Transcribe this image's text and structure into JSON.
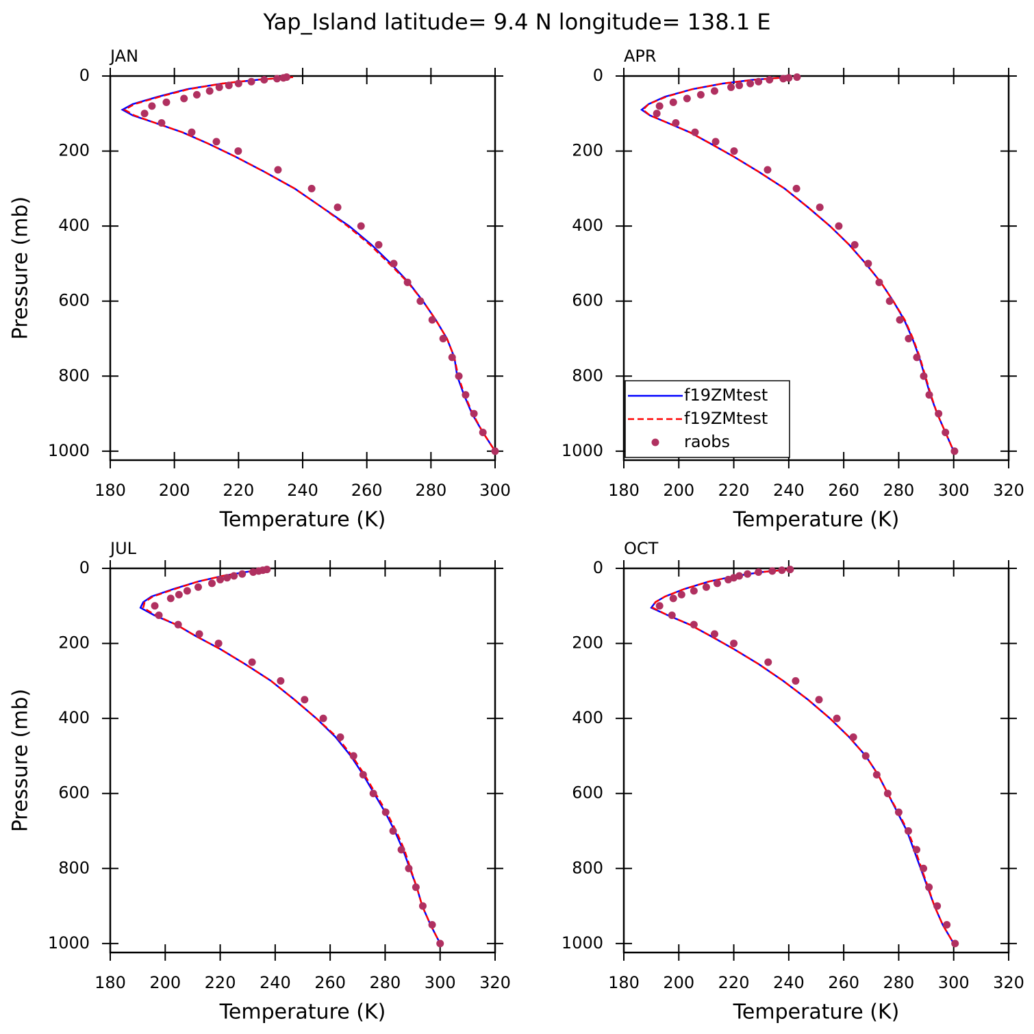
{
  "title": "Yap_Island  latitude= 9.4 N longitude= 138.1 E",
  "chart_data": [
    {
      "type": "line",
      "title": "JAN",
      "xlabel": "Temperature (K)",
      "ylabel": "Pressure (mb)",
      "xlim": [
        180,
        300
      ],
      "xticks": [
        180,
        200,
        220,
        240,
        260,
        280,
        300
      ],
      "ylim": [
        1024,
        0
      ],
      "yticks": [
        0,
        200,
        400,
        600,
        800,
        1000
      ],
      "legend": false,
      "series": [
        {
          "name": "f19ZMtest",
          "color": "#0000ff",
          "style": "solid",
          "x": [
            237,
            226,
            215,
            204,
            195,
            187,
            183.8,
            187,
            194,
            202.5,
            210.5,
            219,
            228,
            237.5,
            246,
            254.5,
            261.5,
            267.5,
            273,
            277.5,
            281.5,
            285,
            287.3,
            288.2,
            290.3,
            292.8,
            296.2,
            300
          ],
          "y": [
            3,
            10,
            20,
            35,
            55,
            75,
            90,
            105,
            125,
            150,
            180,
            215,
            255,
            300,
            350,
            400,
            450,
            500,
            550,
            600,
            650,
            700,
            750,
            800,
            850,
            900,
            950,
            1000
          ]
        },
        {
          "name": "f19ZMtest",
          "color": "#ff0000",
          "style": "dashed",
          "x": [
            237,
            225.5,
            215,
            204.5,
            195.5,
            187.5,
            184.5,
            187.5,
            194,
            202.5,
            210.5,
            219,
            228,
            237.5,
            246,
            254,
            261,
            267,
            272.8,
            277.5,
            281.5,
            285,
            287.3,
            288.5,
            290.5,
            293,
            296.2,
            300
          ],
          "y": [
            3,
            10,
            20,
            35,
            55,
            75,
            90,
            105,
            125,
            150,
            180,
            215,
            255,
            300,
            350,
            400,
            450,
            500,
            550,
            600,
            650,
            700,
            750,
            800,
            850,
            900,
            950,
            1000
          ]
        },
        {
          "name": "raobs",
          "color": "#b03060",
          "style": "markers",
          "x": [
            235,
            234,
            232,
            228,
            224,
            220,
            217,
            214,
            211,
            207,
            203,
            197.5,
            193,
            190.7,
            196,
            205.4,
            213.1,
            219.9,
            232.3,
            242.8,
            250.9,
            258.2,
            263.7,
            268.4,
            272.7,
            276.7,
            280.4,
            283.8,
            286.6,
            288.7,
            290.8,
            293.4,
            296.2,
            300
          ],
          "y": [
            3,
            5,
            7,
            10,
            15,
            20,
            25,
            30,
            40,
            50,
            60,
            70,
            80,
            100,
            125,
            150,
            175,
            200,
            250,
            300,
            350,
            400,
            450,
            500,
            550,
            600,
            650,
            700,
            750,
            800,
            850,
            900,
            950,
            1000
          ]
        }
      ]
    },
    {
      "type": "line",
      "title": "APR",
      "xlabel": "Temperature (K)",
      "ylabel": "",
      "xlim": [
        180,
        320
      ],
      "xticks": [
        180,
        200,
        220,
        240,
        260,
        280,
        300,
        320
      ],
      "ylim": [
        1024,
        0
      ],
      "yticks": [
        0,
        200,
        400,
        600,
        800,
        1000
      ],
      "legend": "lower left",
      "series": [
        {
          "name": "f19ZMtest",
          "color": "#0000ff",
          "style": "solid",
          "x": [
            240,
            227,
            216,
            205,
            195,
            189,
            186.5,
            189.5,
            196,
            204,
            211.5,
            220,
            229,
            238.5,
            247,
            255,
            262,
            268,
            273.5,
            278,
            282,
            285,
            287.5,
            289.5,
            291.5,
            294,
            297,
            300
          ],
          "y": [
            3,
            10,
            20,
            35,
            55,
            75,
            90,
            105,
            125,
            150,
            180,
            215,
            255,
            300,
            350,
            400,
            450,
            500,
            550,
            600,
            650,
            700,
            750,
            800,
            850,
            900,
            950,
            1000
          ]
        },
        {
          "name": "f19ZMtest",
          "color": "#ff0000",
          "style": "dashed",
          "x": [
            240,
            227.5,
            216,
            205,
            195.5,
            189,
            187,
            189.5,
            196,
            204,
            211.5,
            220,
            229,
            238.5,
            247,
            255,
            262,
            268,
            273.5,
            278,
            282.2,
            285.2,
            287.7,
            289.7,
            291.7,
            294,
            297,
            300
          ],
          "y": [
            3,
            10,
            20,
            35,
            55,
            75,
            90,
            105,
            125,
            150,
            180,
            215,
            255,
            300,
            350,
            400,
            450,
            500,
            550,
            600,
            650,
            700,
            750,
            800,
            850,
            900,
            950,
            1000
          ]
        },
        {
          "name": "raobs",
          "color": "#b03060",
          "style": "markers",
          "x": [
            243,
            240,
            238,
            233,
            229,
            226,
            222,
            219,
            213,
            208,
            203,
            198,
            193,
            192,
            198.9,
            205.9,
            213.4,
            220.1,
            232.3,
            242.8,
            251.3,
            258.2,
            264,
            268.9,
            272.9,
            276.7,
            280.4,
            283.6,
            286.6,
            289.1,
            291.1,
            294.5,
            297,
            300.3
          ],
          "y": [
            3,
            5,
            7,
            10,
            15,
            20,
            25,
            30,
            40,
            50,
            60,
            70,
            80,
            100,
            125,
            150,
            175,
            200,
            250,
            300,
            350,
            400,
            450,
            500,
            550,
            600,
            650,
            700,
            750,
            800,
            850,
            900,
            950,
            1000
          ]
        }
      ]
    },
    {
      "type": "line",
      "title": "JUL",
      "xlabel": "Temperature (K)",
      "ylabel": "Pressure (mb)",
      "xlim": [
        180,
        320
      ],
      "xticks": [
        180,
        200,
        220,
        240,
        260,
        280,
        300,
        320
      ],
      "ylim": [
        1024,
        0
      ],
      "yticks": [
        0,
        200,
        400,
        600,
        800,
        1000
      ],
      "legend": false,
      "series": [
        {
          "name": "f19ZMtest",
          "color": "#0000ff",
          "style": "solid",
          "x": [
            236,
            229,
            221,
            212,
            203,
            195,
            192,
            191,
            196,
            204,
            211,
            220,
            229,
            238.5,
            247,
            255,
            262,
            267.5,
            272,
            276,
            280,
            283.5,
            286.5,
            289,
            291.5,
            293.5,
            296.5,
            300
          ],
          "y": [
            3,
            10,
            20,
            35,
            55,
            75,
            90,
            105,
            125,
            150,
            180,
            215,
            255,
            300,
            350,
            400,
            450,
            500,
            550,
            600,
            650,
            700,
            750,
            800,
            850,
            900,
            950,
            1000
          ]
        },
        {
          "name": "f19ZMtest",
          "color": "#ff0000",
          "style": "dashed",
          "x": [
            236,
            229,
            221,
            212,
            203.5,
            195.5,
            192.5,
            192,
            196.5,
            204,
            211,
            220,
            229,
            238.5,
            247,
            255,
            262.5,
            268,
            272.5,
            276.5,
            280.5,
            284,
            287,
            289.2,
            291.5,
            293.5,
            296.5,
            300
          ],
          "y": [
            3,
            10,
            20,
            35,
            55,
            75,
            90,
            105,
            125,
            150,
            180,
            215,
            255,
            300,
            350,
            400,
            450,
            500,
            550,
            600,
            650,
            700,
            750,
            800,
            850,
            900,
            950,
            1000
          ]
        },
        {
          "name": "raobs",
          "color": "#b03060",
          "style": "markers",
          "x": [
            237,
            235.5,
            234,
            232,
            228,
            225,
            222.5,
            220,
            217,
            212,
            208,
            205,
            202,
            196.2,
            197.7,
            204.7,
            212.4,
            219.4,
            231.6,
            242,
            250.7,
            257.5,
            263.7,
            268.5,
            272,
            275.7,
            280.2,
            282.9,
            285.9,
            288.6,
            291.2,
            293.7,
            297.1,
            300
          ],
          "y": [
            3,
            5,
            7,
            10,
            15,
            20,
            25,
            30,
            40,
            50,
            60,
            70,
            80,
            100,
            125,
            150,
            175,
            200,
            250,
            300,
            350,
            400,
            450,
            500,
            550,
            600,
            650,
            700,
            750,
            800,
            850,
            900,
            950,
            1000
          ]
        }
      ]
    },
    {
      "type": "line",
      "title": "OCT",
      "xlabel": "Temperature (K)",
      "ylabel": "",
      "xlim": [
        180,
        320
      ],
      "xticks": [
        180,
        200,
        220,
        240,
        260,
        280,
        300,
        320
      ],
      "ylim": [
        1024,
        0
      ],
      "yticks": [
        0,
        200,
        400,
        600,
        800,
        1000
      ],
      "legend": false,
      "series": [
        {
          "name": "f19ZMtest",
          "color": "#0000ff",
          "style": "solid",
          "x": [
            240,
            230,
            221,
            211,
            202,
            195,
            191.5,
            190,
            196,
            204,
            211.5,
            220,
            229,
            238,
            247,
            255,
            262,
            268,
            272.5,
            276,
            279.5,
            283,
            285.5,
            288,
            290.5,
            293,
            296,
            300
          ],
          "y": [
            3,
            10,
            20,
            35,
            55,
            75,
            90,
            105,
            125,
            150,
            180,
            215,
            255,
            300,
            350,
            400,
            450,
            500,
            550,
            600,
            650,
            700,
            750,
            800,
            850,
            900,
            950,
            1000
          ]
        },
        {
          "name": "f19ZMtest",
          "color": "#ff0000",
          "style": "dashed",
          "x": [
            240,
            230,
            221,
            211,
            202,
            195,
            191.5,
            190.5,
            196,
            204,
            211.5,
            220,
            229,
            238,
            247,
            255,
            262,
            268,
            272.5,
            276,
            279.8,
            283.3,
            286,
            288.3,
            290.7,
            293,
            296,
            300
          ],
          "y": [
            3,
            10,
            20,
            35,
            55,
            75,
            90,
            105,
            125,
            150,
            180,
            215,
            255,
            300,
            350,
            400,
            450,
            500,
            550,
            600,
            650,
            700,
            750,
            800,
            850,
            900,
            950,
            1000
          ]
        },
        {
          "name": "raobs",
          "color": "#b03060",
          "style": "markers",
          "x": [
            240.5,
            237.5,
            234,
            229,
            225,
            222,
            220,
            218,
            214,
            210,
            205.5,
            201,
            198,
            193,
            197.5,
            205.5,
            213,
            220,
            232.5,
            242.5,
            251,
            257.5,
            263.5,
            268,
            272,
            276,
            280,
            283.5,
            286.5,
            289,
            291,
            294,
            297.5,
            300.5
          ],
          "y": [
            3,
            5,
            7,
            10,
            15,
            20,
            25,
            30,
            40,
            50,
            60,
            70,
            80,
            100,
            125,
            150,
            175,
            200,
            250,
            300,
            350,
            400,
            450,
            500,
            550,
            600,
            650,
            700,
            750,
            800,
            850,
            900,
            950,
            1000
          ]
        }
      ]
    }
  ]
}
